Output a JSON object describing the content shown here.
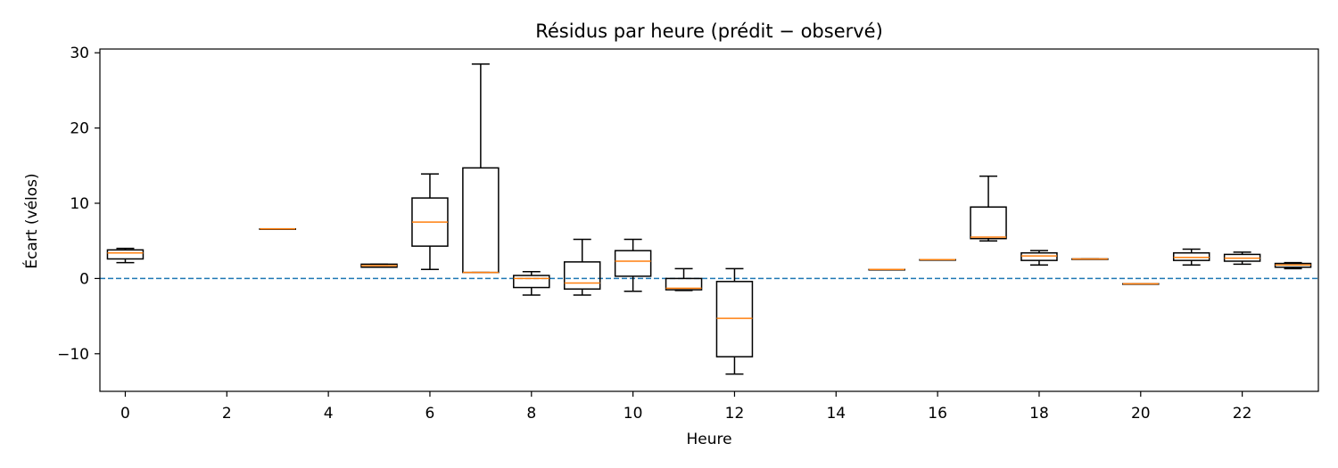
{
  "chart_data": {
    "type": "box",
    "title": "Résidus par heure (prédit − observé)",
    "xlabel": "Heure",
    "ylabel": "Écart (vélos)",
    "xlim": [
      -0.5,
      23.5
    ],
    "ylim": [
      -15,
      30.5
    ],
    "xticks": [
      0,
      2,
      4,
      6,
      8,
      10,
      12,
      14,
      16,
      18,
      20,
      22
    ],
    "yticks": [
      -10,
      0,
      10,
      20,
      30
    ],
    "ytick_labels": [
      "−10",
      "0",
      "10",
      "20",
      "30"
    ],
    "reference_line": {
      "y": 0,
      "style": "dashed",
      "color": "#1f77b4"
    },
    "box_color": "#000000",
    "median_color": "#ff7f0e",
    "grid": false,
    "boxes": [
      {
        "x": 0,
        "whislo": 2.1,
        "q1": 2.6,
        "med": 3.4,
        "q3": 3.8,
        "whishi": 4.0
      },
      {
        "x": 3,
        "whislo": 6.6,
        "q1": 6.6,
        "med": 6.6,
        "q3": 6.6,
        "whishi": 6.6
      },
      {
        "x": 5,
        "whislo": 1.5,
        "q1": 1.5,
        "med": 1.7,
        "q3": 1.9,
        "whishi": 1.9
      },
      {
        "x": 6,
        "whislo": 1.2,
        "q1": 4.3,
        "med": 7.5,
        "q3": 10.7,
        "whishi": 13.9
      },
      {
        "x": 7,
        "whislo": 0.8,
        "q1": 0.8,
        "med": 0.8,
        "q3": 14.7,
        "whishi": 28.5
      },
      {
        "x": 8,
        "whislo": -2.2,
        "q1": -1.2,
        "med": 0.0,
        "q3": 0.4,
        "whishi": 0.9
      },
      {
        "x": 9,
        "whislo": -2.2,
        "q1": -1.4,
        "med": -0.6,
        "q3": 2.2,
        "whishi": 5.2
      },
      {
        "x": 10,
        "whislo": -1.7,
        "q1": 0.3,
        "med": 2.3,
        "q3": 3.7,
        "whishi": 5.2
      },
      {
        "x": 11,
        "whislo": -1.6,
        "q1": -1.5,
        "med": -1.3,
        "q3": 0.0,
        "whishi": 1.3
      },
      {
        "x": 12,
        "whislo": -12.7,
        "q1": -10.4,
        "med": -5.3,
        "q3": -0.4,
        "whishi": 1.3
      },
      {
        "x": 15,
        "whislo": 1.2,
        "q1": 1.2,
        "med": 1.2,
        "q3": 1.2,
        "whishi": 1.2
      },
      {
        "x": 16,
        "whislo": 2.5,
        "q1": 2.5,
        "med": 2.5,
        "q3": 2.5,
        "whishi": 2.5
      },
      {
        "x": 17,
        "whislo": 5.0,
        "q1": 5.3,
        "med": 5.5,
        "q3": 9.5,
        "whishi": 13.6
      },
      {
        "x": 18,
        "whislo": 1.8,
        "q1": 2.4,
        "med": 3.0,
        "q3": 3.4,
        "whishi": 3.7
      },
      {
        "x": 19,
        "whislo": 2.6,
        "q1": 2.6,
        "med": 2.6,
        "q3": 2.6,
        "whishi": 2.6
      },
      {
        "x": 20,
        "whislo": -0.7,
        "q1": -0.7,
        "med": -0.7,
        "q3": -0.7,
        "whishi": -0.7
      },
      {
        "x": 21,
        "whislo": 1.8,
        "q1": 2.4,
        "med": 2.8,
        "q3": 3.4,
        "whishi": 3.9
      },
      {
        "x": 22,
        "whislo": 1.9,
        "q1": 2.3,
        "med": 2.7,
        "q3": 3.2,
        "whishi": 3.5
      },
      {
        "x": 23,
        "whislo": 1.3,
        "q1": 1.5,
        "med": 1.8,
        "q3": 2.0,
        "whishi": 2.1
      }
    ]
  }
}
